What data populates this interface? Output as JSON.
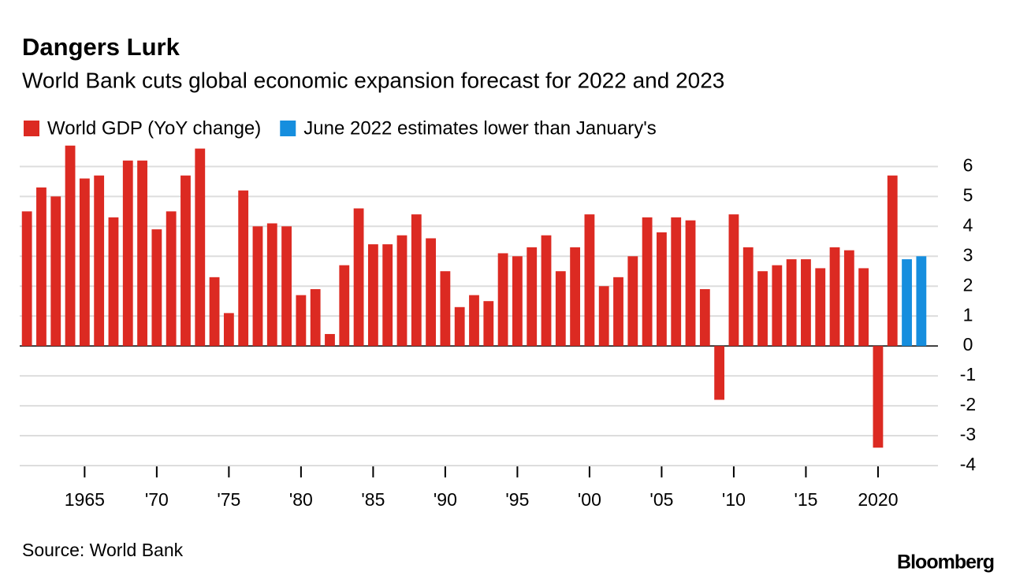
{
  "chart_data": {
    "type": "bar",
    "title": "Dangers Lurk",
    "subtitle": "World Bank cuts global economic expansion forecast for 2022 and 2023",
    "source": "Source: World Bank",
    "brand": "Bloomberg",
    "x": [
      1961,
      1962,
      1963,
      1964,
      1965,
      1966,
      1967,
      1968,
      1969,
      1970,
      1971,
      1972,
      1973,
      1974,
      1975,
      1976,
      1977,
      1978,
      1979,
      1980,
      1981,
      1982,
      1983,
      1984,
      1985,
      1986,
      1987,
      1988,
      1989,
      1990,
      1991,
      1992,
      1993,
      1994,
      1995,
      1996,
      1997,
      1998,
      1999,
      2000,
      2001,
      2002,
      2003,
      2004,
      2005,
      2006,
      2007,
      2008,
      2009,
      2010,
      2011,
      2012,
      2013,
      2014,
      2015,
      2016,
      2017,
      2018,
      2019,
      2020,
      2021,
      2022,
      2023
    ],
    "series": [
      {
        "name": "World GDP (YoY change)",
        "color": "#dc2a22",
        "values": [
          4.5,
          5.3,
          5.0,
          6.7,
          5.6,
          5.7,
          4.3,
          6.2,
          6.2,
          3.9,
          4.5,
          5.7,
          6.6,
          2.3,
          1.1,
          5.2,
          4.0,
          4.1,
          4.0,
          1.7,
          1.9,
          0.4,
          2.7,
          4.6,
          3.4,
          3.4,
          3.7,
          4.4,
          3.6,
          2.5,
          1.3,
          1.7,
          1.5,
          3.1,
          3.0,
          3.3,
          3.7,
          2.5,
          3.3,
          4.4,
          2.0,
          2.3,
          3.0,
          4.3,
          3.8,
          4.3,
          4.2,
          1.9,
          -1.8,
          4.4,
          3.3,
          2.5,
          2.7,
          2.9,
          2.9,
          2.6,
          3.3,
          3.2,
          2.6,
          -3.4,
          5.7,
          null,
          null
        ]
      },
      {
        "name": "June 2022 estimates lower than January's",
        "color": "#168ede",
        "values": [
          null,
          null,
          null,
          null,
          null,
          null,
          null,
          null,
          null,
          null,
          null,
          null,
          null,
          null,
          null,
          null,
          null,
          null,
          null,
          null,
          null,
          null,
          null,
          null,
          null,
          null,
          null,
          null,
          null,
          null,
          null,
          null,
          null,
          null,
          null,
          null,
          null,
          null,
          null,
          null,
          null,
          null,
          null,
          null,
          null,
          null,
          null,
          null,
          null,
          null,
          null,
          null,
          null,
          null,
          null,
          null,
          null,
          null,
          null,
          null,
          null,
          2.9,
          3.0
        ]
      }
    ],
    "xlim": [
      1960.5,
      2023.5
    ],
    "xticks": [
      1965,
      {
        "value": 1970,
        "label": "'70"
      },
      {
        "value": 1975,
        "label": "'75"
      },
      {
        "value": 1980,
        "label": "'80"
      },
      {
        "value": 1985,
        "label": "'85"
      },
      {
        "value": 1990,
        "label": "'90"
      },
      {
        "value": 1995,
        "label": "'95"
      },
      {
        "value": 2000,
        "label": "'00"
      },
      {
        "value": 2005,
        "label": "'05"
      },
      {
        "value": 2010,
        "label": "'10"
      },
      {
        "value": 2015,
        "label": "'15"
      },
      2020
    ],
    "ylim": [
      -4,
      6.8
    ],
    "yticks": [
      -4,
      -3,
      -2,
      -1,
      0,
      1,
      2,
      3,
      4,
      5,
      6
    ],
    "grid": true
  }
}
